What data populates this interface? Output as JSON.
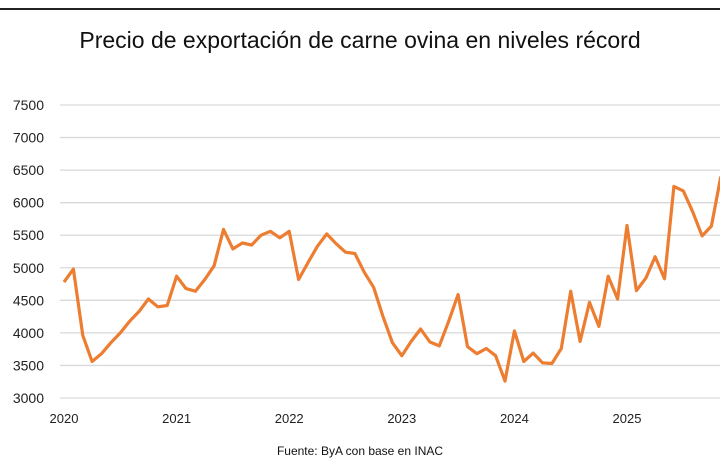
{
  "chart_data": {
    "type": "line",
    "title": "Precio de exportación de carne ovina en niveles récord",
    "source": "Fuente: ByA con base en INAC",
    "xlabel": "",
    "ylabel": "",
    "ylim": [
      3000,
      7500
    ],
    "yticks": [
      3000,
      3500,
      4000,
      4500,
      5000,
      5500,
      6000,
      6500,
      7000,
      7500
    ],
    "xticks": [
      "2020",
      "2021",
      "2022",
      "2023",
      "2024",
      "2025"
    ],
    "grid": true,
    "color": "#ED7D31",
    "series": [
      {
        "name": "Precio de exportación carne ovina",
        "start": "2020-01",
        "frequency": "monthly",
        "values": [
          4780,
          4980,
          3960,
          3560,
          3680,
          3850,
          4000,
          4180,
          4330,
          4520,
          4400,
          4420,
          4870,
          4680,
          4640,
          4820,
          5030,
          5590,
          5290,
          5380,
          5350,
          5500,
          5560,
          5460,
          5560,
          4820,
          5080,
          5330,
          5520,
          5370,
          5240,
          5220,
          4930,
          4700,
          4250,
          3850,
          3650,
          3870,
          4060,
          3860,
          3800,
          4180,
          4590,
          3790,
          3680,
          3760,
          3650,
          3260,
          4030,
          3560,
          3690,
          3540,
          3530,
          3760,
          4640,
          3870,
          4470,
          4100,
          4870,
          4520,
          5650,
          4650,
          4840,
          5170,
          4830,
          6250,
          6180,
          5860,
          5490,
          5640,
          6400
        ]
      }
    ]
  }
}
